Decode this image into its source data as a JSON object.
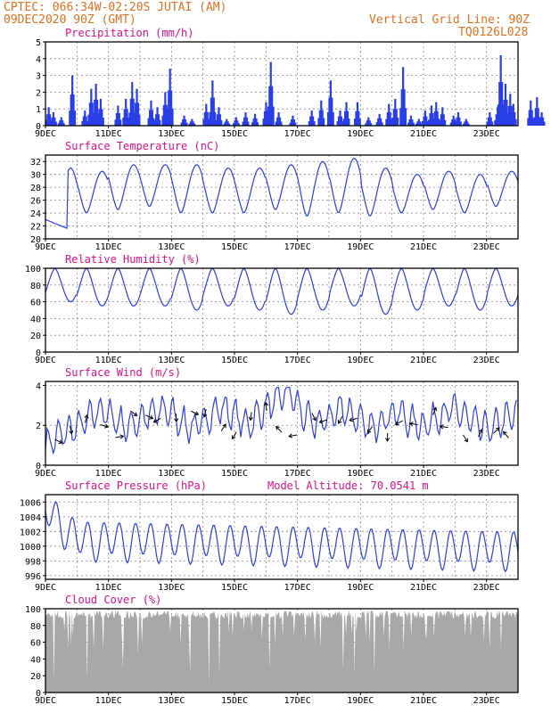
{
  "header": {
    "line1": "CPTEC:   066:34W-02:20S  JUTAI (AM)",
    "line2": "09DEC2020 90Z (GMT)",
    "grid_note": "Vertical Grid Line: 90Z",
    "code": "TQ0126L028"
  },
  "colors": {
    "header": "#e07020",
    "title": "#e0108a",
    "line": "#2a3ee8",
    "bar": "#2a3ee8",
    "cloud": "#a8a8a8",
    "grid": "#8a8a8a"
  },
  "x_axis": {
    "ticks": [
      "9DEC",
      "11DEC",
      "13DEC",
      "15DEC",
      "17DEC",
      "19DEC",
      "21DEC",
      "23DEC"
    ],
    "range_days": [
      0,
      15
    ]
  },
  "chart_data": [
    {
      "id": "precip",
      "type": "bar",
      "title": "Precipitation (mm/h)",
      "ylim": [
        0,
        5
      ],
      "yticks": [
        0,
        1,
        2,
        3,
        4,
        5
      ],
      "events": [
        [
          0.1,
          1.1
        ],
        [
          0.25,
          0.8
        ],
        [
          0.5,
          0.5
        ],
        [
          0.85,
          3.0
        ],
        [
          1.25,
          0.9
        ],
        [
          1.45,
          2.2
        ],
        [
          1.6,
          2.5
        ],
        [
          1.75,
          1.6
        ],
        [
          2.3,
          1.2
        ],
        [
          2.55,
          1.6
        ],
        [
          2.75,
          2.6
        ],
        [
          2.9,
          2.2
        ],
        [
          3.35,
          1.5
        ],
        [
          3.55,
          1.1
        ],
        [
          3.8,
          2.0
        ],
        [
          3.95,
          3.4
        ],
        [
          4.4,
          0.6
        ],
        [
          4.65,
          0.4
        ],
        [
          5.1,
          1.3
        ],
        [
          5.3,
          2.7
        ],
        [
          5.5,
          1.1
        ],
        [
          5.75,
          0.4
        ],
        [
          6.05,
          0.5
        ],
        [
          6.35,
          0.8
        ],
        [
          6.65,
          0.7
        ],
        [
          7.0,
          1.4
        ],
        [
          7.15,
          3.8
        ],
        [
          7.4,
          0.8
        ],
        [
          7.85,
          0.6
        ],
        [
          8.45,
          0.9
        ],
        [
          8.75,
          1.5
        ],
        [
          9.05,
          2.7
        ],
        [
          9.35,
          0.9
        ],
        [
          9.55,
          1.4
        ],
        [
          9.9,
          1.4
        ],
        [
          10.25,
          0.5
        ],
        [
          10.6,
          0.7
        ],
        [
          10.9,
          1.3
        ],
        [
          11.1,
          1.6
        ],
        [
          11.35,
          3.5
        ],
        [
          11.6,
          0.6
        ],
        [
          11.85,
          0.4
        ],
        [
          12.05,
          0.9
        ],
        [
          12.25,
          1.2
        ],
        [
          12.4,
          1.4
        ],
        [
          12.6,
          1.1
        ],
        [
          12.95,
          0.6
        ],
        [
          13.1,
          0.8
        ],
        [
          13.35,
          0.4
        ],
        [
          14.1,
          0.8
        ],
        [
          14.35,
          1.1
        ],
        [
          14.45,
          4.2
        ],
        [
          14.6,
          2.5
        ],
        [
          14.75,
          1.9
        ],
        [
          14.85,
          1.3
        ],
        [
          15.4,
          1.5
        ],
        [
          15.6,
          1.7
        ],
        [
          15.75,
          0.8
        ]
      ]
    },
    {
      "id": "temp",
      "type": "line",
      "title": "Surface Temperature (nC)",
      "ylim": [
        20,
        33
      ],
      "yticks": [
        20,
        22,
        24,
        26,
        28,
        30,
        32
      ],
      "tmax": [
        31.0,
        30.5,
        31.5,
        31.5,
        31.5,
        31.0,
        31.0,
        31.5,
        32.0,
        32.5,
        31.0,
        30.0,
        30.5,
        30.0,
        30.5,
        31.0
      ],
      "tmin": [
        22.0,
        24.0,
        24.5,
        25.0,
        24.0,
        24.0,
        24.0,
        24.5,
        23.5,
        24.0,
        23.5,
        24.0,
        24.5,
        24.0,
        25.0,
        24.5
      ]
    },
    {
      "id": "rh",
      "type": "line",
      "title": "Relative Humidity (%)",
      "ylim": [
        0,
        100
      ],
      "yticks": [
        0,
        20,
        40,
        60,
        80,
        100
      ],
      "hmin": [
        60,
        55,
        55,
        55,
        50,
        55,
        50,
        45,
        50,
        55,
        45,
        50,
        55,
        50,
        55,
        50
      ]
    },
    {
      "id": "wind",
      "type": "line",
      "title": "Surface Wind (m/s)",
      "ylim": [
        0,
        4.2
      ],
      "yticks": [
        0,
        2,
        4
      ],
      "speed": [
        1.0,
        1.5,
        1.8,
        2.2,
        2.8,
        2.4,
        1.9,
        2.3,
        2.6,
        2.8,
        2.2,
        1.8,
        2.4,
        2.9,
        2.5,
        2.0,
        2.7,
        3.2,
        3.8,
        2.6,
        2.0,
        2.4,
        2.9,
        2.4,
        1.8,
        2.3,
        2.7,
        2.2,
        2.0,
        2.4,
        2.8,
        2.5,
        2.0,
        1.8,
        2.3,
        2.6
      ]
    },
    {
      "id": "press",
      "type": "line",
      "title": "Surface Pressure (hPa)",
      "extra_label": "Model Altitude: 70.0541 m",
      "ylim": [
        995.5,
        1007
      ],
      "yticks": [
        996,
        998,
        1000,
        1002,
        1004,
        1006
      ]
    },
    {
      "id": "cloud",
      "type": "area",
      "title": "Cloud Cover (%)",
      "ylim": [
        0,
        100
      ],
      "yticks": [
        0,
        20,
        40,
        60,
        80,
        100
      ]
    }
  ]
}
